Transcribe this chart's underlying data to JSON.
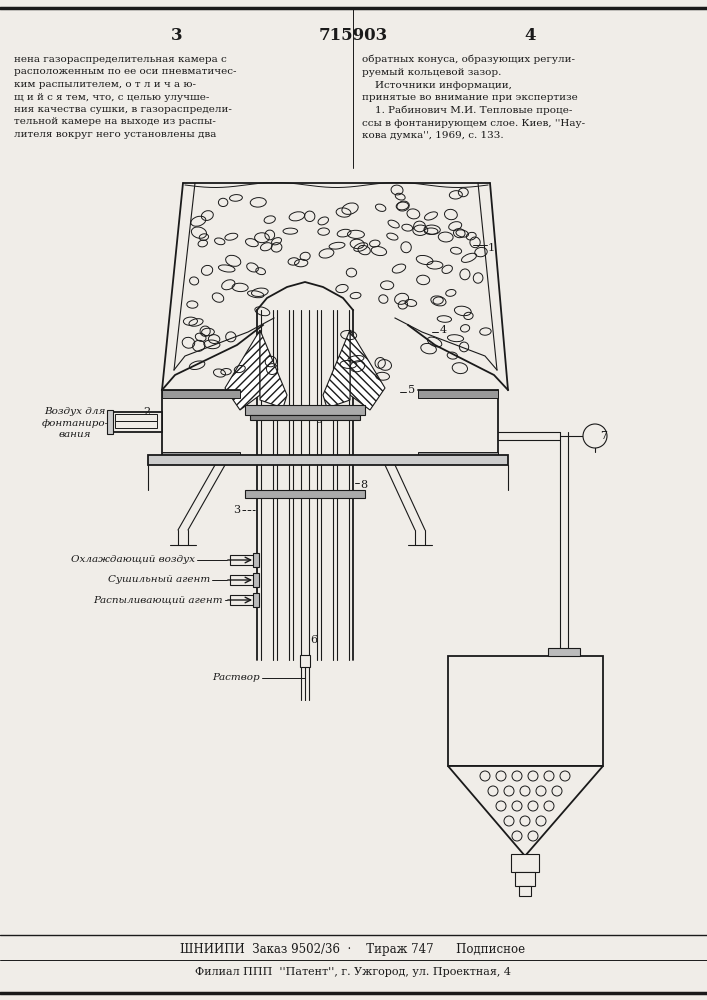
{
  "page_number_left": "3",
  "page_number_center": "715903",
  "page_number_right": "4",
  "text_left_col": "нена газораспределительная камера с\nрасположенным по ее оси пневматичес-\nким распылителем, о т л и ч а ю-\nщ и й с я тем, что, с целью улучше-\nния качества сушки, в газораспредели-\nтельной камере на выходе из распы-\nлителя вокруг него установлены два",
  "text_right_col": "обратных конуса, образующих регули-\nруемый кольцевой зазор.\n    Источники информации,\nпринятые во внимание при экспертизе\n    1. Рабинович М.И. Тепловые проце-\nссы в фонтанирующем слое. Киев, ''Нау-\nкова думка'', 1969, с. 133.",
  "label_vozdukh": "Воздух для\nфонтаниро-\nвания",
  "label_ohlazhd": "Охлаждающий воздух",
  "label_sushilny": "Сушильный агент",
  "label_raspyl": "Распыливающий агент",
  "label_rastvor": "Раствор",
  "footer_line1": "ШНИИПИ  Заказ 9502/36  ·    Тираж 747      Подписное",
  "footer_line2": "Филиал ППП  ''Патент'', г. Ужгород, ул. Проектная, 4",
  "bg_color": "#f0ede8",
  "line_color": "#1a1a1a",
  "fig_width": 7.07,
  "fig_height": 10.0,
  "dpi": 100
}
